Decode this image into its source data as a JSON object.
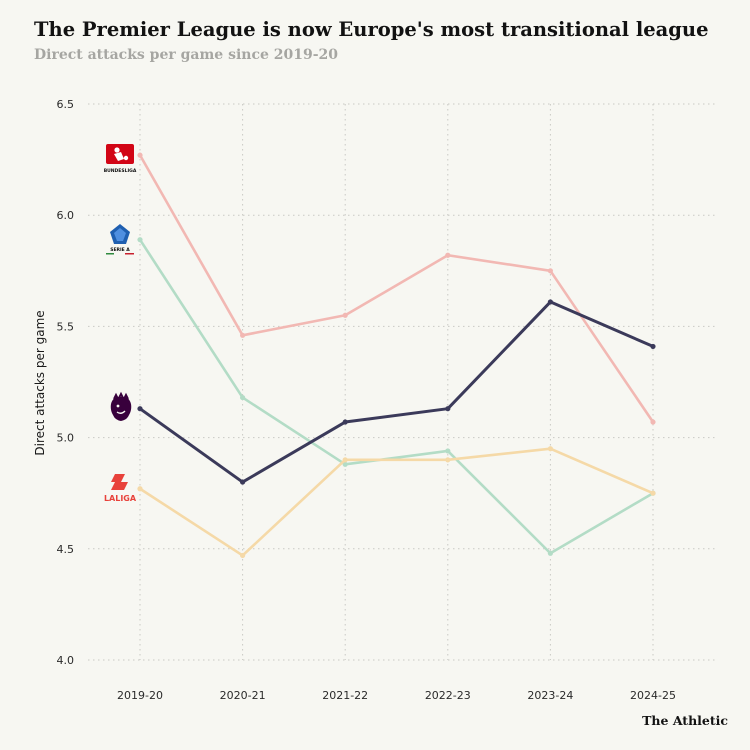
{
  "title": "The Premier League is now Europe's most transitional league",
  "subtitle": "Direct attacks per game since 2019-20",
  "credit": "The Athletic",
  "chart_data": {
    "type": "line",
    "x": [
      "2019-20",
      "2020-21",
      "2021-22",
      "2022-23",
      "2023-24",
      "2024-25"
    ],
    "ylabel": "Direct attacks per game",
    "xlabel": "",
    "ylim": [
      4.0,
      6.5
    ],
    "yticks": [
      "4.0",
      "4.5",
      "5.0",
      "5.5",
      "6.0",
      "6.5"
    ],
    "grid": true,
    "series": [
      {
        "key": "bundesliga",
        "logo_text": "BUNDESLIGA",
        "color": "#f2b8b3",
        "values": [
          6.27,
          5.46,
          5.55,
          5.82,
          5.75,
          5.07
        ]
      },
      {
        "key": "serie_a",
        "logo_text": "SERIE A",
        "color": "#b3dcc6",
        "values": [
          5.89,
          5.18,
          4.88,
          4.94,
          4.48,
          4.75
        ]
      },
      {
        "key": "premier_league",
        "logo_text": "",
        "color": "#3b3a5a",
        "values": [
          5.13,
          4.8,
          5.07,
          5.13,
          5.61,
          5.41
        ]
      },
      {
        "key": "laliga",
        "logo_text": "LALIGA",
        "color": "#f5d9a7",
        "values": [
          4.77,
          4.47,
          4.9,
          4.9,
          4.95,
          4.75
        ]
      }
    ]
  }
}
